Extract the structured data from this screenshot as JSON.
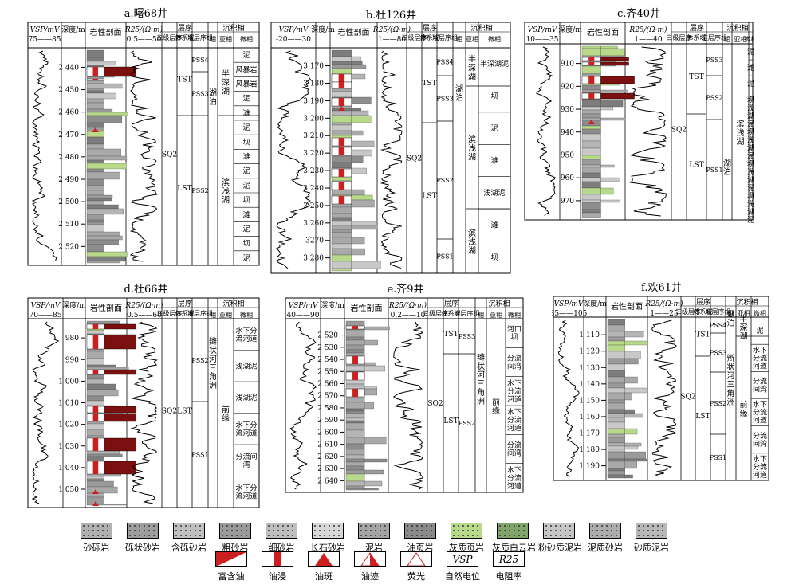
{
  "common": {
    "hdr_vsp": "VSP/mV",
    "hdr_depth": "深度/m",
    "hdr_lith": "岩性剖面",
    "hdr_r25": "R25/(Ω·m)",
    "hdr_seq": "层序",
    "hdr_seq_3": "三级层序",
    "hdr_seq_sys": "体系域",
    "hdr_seq_para": "准层序组",
    "hdr_fac": "沉积相",
    "hdr_fac_main": "相",
    "hdr_fac_sub": "亚相",
    "hdr_fac_micro": "微相"
  },
  "wells": [
    {
      "title": "a.曙68井",
      "vsp_range": "75——85",
      "r25_range": "0.5——50",
      "depths": [
        "2 440",
        "2 450",
        "2 460",
        "2 470",
        "2 480",
        "2 490",
        "2 500",
        "2 510",
        "2 520"
      ],
      "seq3": "SQ2",
      "sys": [
        "TST",
        "LST"
      ],
      "para": [
        "PSS4",
        "PSS3",
        "PSS2"
      ],
      "facies": "湖泊",
      "subfacies": [
        "半深湖",
        "滨浅湖"
      ],
      "micro": [
        "泥",
        "风暴岩",
        "风暴岩",
        "泥",
        "滩",
        "泥",
        "坝",
        "滩",
        "泥",
        "泥",
        "坝",
        "滩",
        "泥",
        "坝",
        "泥"
      ]
    },
    {
      "title": "b.杜126井",
      "vsp_range": "-20——30",
      "r25_range": "1——80",
      "depths": [
        "3 170",
        "3 180",
        "3 190",
        "3 200",
        "3 210",
        "3 220",
        "3 230",
        "3 240",
        "3 250",
        "3 260",
        "3270",
        "3 280"
      ],
      "seq3": "SQ2",
      "sys": [
        "TST",
        "LST"
      ],
      "para": [
        "PSS4",
        "PSS3",
        "PSS2",
        "PSS1"
      ],
      "facies": "湖泊",
      "subfacies": [
        "半深湖",
        "滨浅湖",
        "滨浅湖"
      ],
      "micro": [
        "半深湖泥",
        "坝",
        "泥",
        "滩",
        "浅湖泥",
        "滩",
        "坝"
      ]
    },
    {
      "title": "c.齐40井",
      "vsp_range": "10——35",
      "r25_range": "1——40",
      "depths": [
        "910",
        "920",
        "930",
        "940",
        "950",
        "960",
        "970"
      ],
      "seq3": "SQ2",
      "sys": [
        "TST",
        "LST"
      ],
      "para": [
        "PSS3",
        "PSS2",
        "PSS1"
      ],
      "facies": "湖泊",
      "subfacies": [
        "滨浅湖"
      ],
      "micro": [
        "泥",
        "滩",
        "泥",
        "坝",
        "浅湖泥",
        "坝",
        "浅湖泥",
        "坝",
        "浅湖泥",
        "坝",
        "浅湖泥"
      ]
    },
    {
      "title": "d.杜66井",
      "vsp_range": "70——85",
      "r25_range": "0.5——60",
      "depths": [
        "980",
        "990",
        "1 000",
        "1 010",
        "1 020",
        "1 030",
        "1 040",
        "1 050"
      ],
      "seq3": "SQ2",
      "sys": [
        "LST"
      ],
      "para": [
        "PSS2",
        "PSS1"
      ],
      "facies": "辫状河三角洲",
      "subfacies": [
        "前缘"
      ],
      "micro": [
        "水下分流河道",
        "浅湖泥",
        "浅湖泥",
        "水下分流河道",
        "分流间湾",
        "水下分流河道"
      ]
    },
    {
      "title": "e.齐9井",
      "vsp_range": "40——90",
      "r25_range": "0.2——10",
      "depths": [
        "2 520",
        "2 530",
        "2 540",
        "2 550",
        "2 560",
        "2 570",
        "2 580",
        "2 590",
        "2 600",
        "2 610",
        "2 620",
        "2 630",
        "2 640"
      ],
      "seq3": "SQ2",
      "sys": [
        "TST",
        "LST"
      ],
      "para": [
        "PSS3",
        "PSS2"
      ],
      "facies": "辫状河三角洲",
      "subfacies": [
        "前缘"
      ],
      "micro": [
        "河口坝",
        "分流间湾",
        "水下分流河道",
        "水下分流河道",
        "分流间湾",
        "水下分流河道"
      ]
    },
    {
      "title": "f.欢61井",
      "vsp_range": "85——105",
      "r25_range": "1——25",
      "depths": [
        "1 110",
        "1 120",
        "1 130",
        "1 140",
        "1 150",
        "1 160",
        "1 170",
        "1 180",
        "1 190"
      ],
      "seq3": "SQ2",
      "sys": [
        "TST",
        "LST"
      ],
      "para": [
        "PSS4",
        "PSS3",
        "PSS2",
        "PSS1"
      ],
      "facies": "湖泊",
      "facies2": "辫状河三角洲",
      "subfacies": [
        "半深湖",
        "前缘"
      ],
      "micro": [
        "泥",
        "水下分流河道",
        "分流间湾",
        "水下分流河道",
        "分流间湾",
        "水下分流河道"
      ]
    }
  ],
  "legend": {
    "lith": [
      "砂砾岩",
      "砾状砂岩",
      "含砾砂岩",
      "粗砂岩",
      "细砂岩",
      "长石砂岩",
      "泥岩",
      "油页岩",
      "灰质页岩",
      "灰质白云岩",
      "粉砂质泥岩",
      "泥质砂岩",
      "砂质泥岩"
    ],
    "oil": [
      "富含油",
      "油浸",
      "油斑",
      "油迹",
      "荧光"
    ],
    "curve": [
      "自然电位",
      "电阻率"
    ],
    "curve_syms": [
      "VSP",
      "R25"
    ]
  },
  "colors": {
    "oil_red": "#cc1f1f",
    "dark_red": "#7a1010",
    "green": "#b8d88a",
    "grey": "#a9a9a9",
    "purple": "#8a3a9a"
  }
}
